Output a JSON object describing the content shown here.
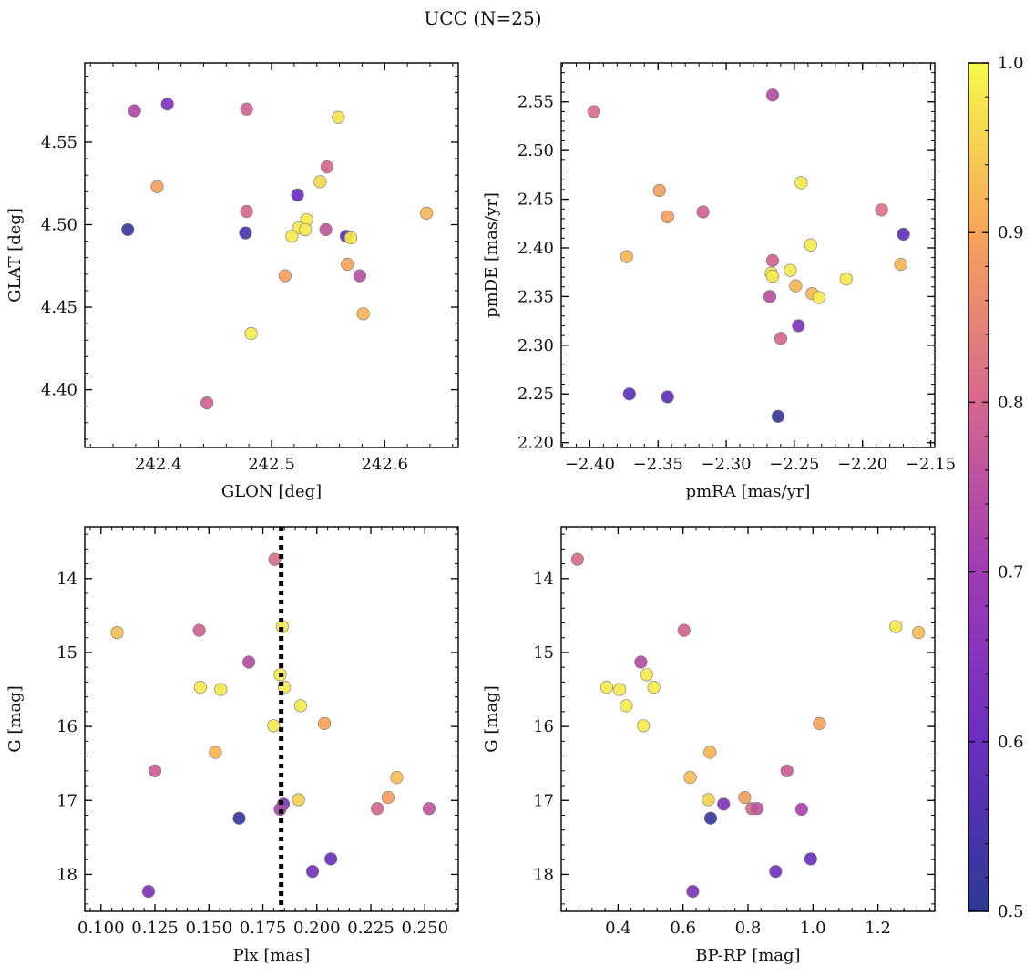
{
  "figure": {
    "title": "UCC (N=25)",
    "colorbar": {
      "min": 0.5,
      "max": 1.0,
      "ticks": [
        "0.5",
        "0.6",
        "0.7",
        "0.8",
        "0.9",
        "1.0"
      ]
    }
  },
  "chart_data": [
    {
      "type": "scatter",
      "id": "glon-glat",
      "title": "",
      "xlabel": "GLON [deg]",
      "ylabel": "GLAT [deg]",
      "xlim": [
        242.335,
        242.665
      ],
      "ylim": [
        4.365,
        4.598
      ],
      "xticks": [
        242.4,
        242.5,
        242.6
      ],
      "xtick_labels": [
        "242.4",
        "242.5",
        "242.6"
      ],
      "yticks": [
        4.4,
        4.45,
        4.5,
        4.55
      ],
      "ytick_labels": [
        "4.40",
        "4.45",
        "4.50",
        "4.55"
      ],
      "invert_y": false,
      "points": [
        {
          "x": 242.379,
          "y": 4.569,
          "c": 0.73
        },
        {
          "x": 242.408,
          "y": 4.573,
          "c": 0.64
        },
        {
          "x": 242.478,
          "y": 4.57,
          "c": 0.79
        },
        {
          "x": 242.559,
          "y": 4.565,
          "c": 0.97
        },
        {
          "x": 242.399,
          "y": 4.523,
          "c": 0.89
        },
        {
          "x": 242.549,
          "y": 4.535,
          "c": 0.8
        },
        {
          "x": 242.543,
          "y": 4.526,
          "c": 0.96
        },
        {
          "x": 242.523,
          "y": 4.518,
          "c": 0.6
        },
        {
          "x": 242.373,
          "y": 4.497,
          "c": 0.52
        },
        {
          "x": 242.478,
          "y": 4.508,
          "c": 0.8
        },
        {
          "x": 242.477,
          "y": 4.495,
          "c": 0.55
        },
        {
          "x": 242.531,
          "y": 4.503,
          "c": 0.98
        },
        {
          "x": 242.524,
          "y": 4.498,
          "c": 0.98
        },
        {
          "x": 242.53,
          "y": 4.497,
          "c": 0.98
        },
        {
          "x": 242.518,
          "y": 4.493,
          "c": 0.98
        },
        {
          "x": 242.548,
          "y": 4.497,
          "c": 0.76
        },
        {
          "x": 242.566,
          "y": 4.493,
          "c": 0.58
        },
        {
          "x": 242.57,
          "y": 4.492,
          "c": 0.98
        },
        {
          "x": 242.637,
          "y": 4.507,
          "c": 0.92
        },
        {
          "x": 242.512,
          "y": 4.469,
          "c": 0.89
        },
        {
          "x": 242.567,
          "y": 4.476,
          "c": 0.9
        },
        {
          "x": 242.578,
          "y": 4.469,
          "c": 0.75
        },
        {
          "x": 242.581,
          "y": 4.446,
          "c": 0.92
        },
        {
          "x": 242.482,
          "y": 4.434,
          "c": 0.98
        },
        {
          "x": 242.443,
          "y": 4.392,
          "c": 0.79
        }
      ]
    },
    {
      "type": "scatter",
      "id": "pmra-pmde",
      "title": "",
      "xlabel": "pmRA [mas/yr]",
      "ylabel": "pmDE [mas/yr]",
      "xlim": [
        -2.421,
        -2.147
      ],
      "ylim": [
        2.195,
        2.59
      ],
      "xticks": [
        -2.4,
        -2.35,
        -2.3,
        -2.25,
        -2.2,
        -2.15
      ],
      "xtick_labels": [
        "−2.40",
        "−2.35",
        "−2.30",
        "−2.25",
        "−2.20",
        "−2.15"
      ],
      "yticks": [
        2.2,
        2.25,
        2.3,
        2.35,
        2.4,
        2.45,
        2.5,
        2.55
      ],
      "ytick_labels": [
        "2.20",
        "2.25",
        "2.30",
        "2.35",
        "2.40",
        "2.45",
        "2.50",
        "2.55"
      ],
      "invert_y": false,
      "points": [
        {
          "x": -2.397,
          "y": 2.54,
          "c": 0.81
        },
        {
          "x": -2.266,
          "y": 2.557,
          "c": 0.74
        },
        {
          "x": -2.349,
          "y": 2.459,
          "c": 0.89
        },
        {
          "x": -2.245,
          "y": 2.467,
          "c": 0.98
        },
        {
          "x": -2.343,
          "y": 2.432,
          "c": 0.89
        },
        {
          "x": -2.317,
          "y": 2.437,
          "c": 0.79
        },
        {
          "x": -2.186,
          "y": 2.439,
          "c": 0.82
        },
        {
          "x": -2.17,
          "y": 2.414,
          "c": 0.58
        },
        {
          "x": -2.373,
          "y": 2.391,
          "c": 0.92
        },
        {
          "x": -2.238,
          "y": 2.403,
          "c": 0.98
        },
        {
          "x": -2.266,
          "y": 2.387,
          "c": 0.79
        },
        {
          "x": -2.172,
          "y": 2.383,
          "c": 0.92
        },
        {
          "x": -2.253,
          "y": 2.377,
          "c": 0.98
        },
        {
          "x": -2.267,
          "y": 2.374,
          "c": 0.98
        },
        {
          "x": -2.266,
          "y": 2.371,
          "c": 0.98
        },
        {
          "x": -2.212,
          "y": 2.368,
          "c": 0.98
        },
        {
          "x": -2.249,
          "y": 2.361,
          "c": 0.92
        },
        {
          "x": -2.237,
          "y": 2.353,
          "c": 0.92
        },
        {
          "x": -2.232,
          "y": 2.349,
          "c": 0.98
        },
        {
          "x": -2.268,
          "y": 2.35,
          "c": 0.74
        },
        {
          "x": -2.247,
          "y": 2.32,
          "c": 0.64
        },
        {
          "x": -2.26,
          "y": 2.307,
          "c": 0.8
        },
        {
          "x": -2.371,
          "y": 2.25,
          "c": 0.58
        },
        {
          "x": -2.343,
          "y": 2.247,
          "c": 0.58
        },
        {
          "x": -2.262,
          "y": 2.227,
          "c": 0.52
        }
      ]
    },
    {
      "type": "scatter",
      "id": "plx-g",
      "title": "",
      "xlabel": "Plx [mas]",
      "ylabel": "G [mag]",
      "xlim": [
        0.0925,
        0.2655
      ],
      "ylim": [
        13.3,
        18.5
      ],
      "xticks": [
        0.1,
        0.125,
        0.15,
        0.175,
        0.2,
        0.225,
        0.25
      ],
      "xtick_labels": [
        "0.100",
        "0.125",
        "0.150",
        "0.175",
        "0.200",
        "0.225",
        "0.250"
      ],
      "yticks": [
        14,
        15,
        16,
        17,
        18
      ],
      "ytick_labels": [
        "14",
        "15",
        "16",
        "17",
        "18"
      ],
      "invert_y": true,
      "vline": 0.1835,
      "points": [
        {
          "x": 0.1805,
          "y": 13.74,
          "c": 0.81
        },
        {
          "x": 0.184,
          "y": 14.65,
          "c": 0.98
        },
        {
          "x": 0.1075,
          "y": 14.73,
          "c": 0.93
        },
        {
          "x": 0.1455,
          "y": 14.7,
          "c": 0.79
        },
        {
          "x": 0.1685,
          "y": 15.13,
          "c": 0.74
        },
        {
          "x": 0.183,
          "y": 15.3,
          "c": 0.98
        },
        {
          "x": 0.146,
          "y": 15.47,
          "c": 0.98
        },
        {
          "x": 0.1555,
          "y": 15.5,
          "c": 0.98
        },
        {
          "x": 0.185,
          "y": 15.47,
          "c": 0.98
        },
        {
          "x": 0.1925,
          "y": 15.72,
          "c": 0.98
        },
        {
          "x": 0.18,
          "y": 15.99,
          "c": 0.98
        },
        {
          "x": 0.2035,
          "y": 15.96,
          "c": 0.9
        },
        {
          "x": 0.153,
          "y": 16.35,
          "c": 0.92
        },
        {
          "x": 0.125,
          "y": 16.6,
          "c": 0.78
        },
        {
          "x": 0.237,
          "y": 16.69,
          "c": 0.93
        },
        {
          "x": 0.233,
          "y": 16.96,
          "c": 0.89
        },
        {
          "x": 0.1915,
          "y": 16.99,
          "c": 0.95
        },
        {
          "x": 0.1845,
          "y": 17.05,
          "c": 0.64
        },
        {
          "x": 0.183,
          "y": 17.12,
          "c": 0.72
        },
        {
          "x": 0.228,
          "y": 17.11,
          "c": 0.8
        },
        {
          "x": 0.252,
          "y": 17.11,
          "c": 0.76
        },
        {
          "x": 0.164,
          "y": 17.24,
          "c": 0.52
        },
        {
          "x": 0.2065,
          "y": 17.79,
          "c": 0.6
        },
        {
          "x": 0.198,
          "y": 17.96,
          "c": 0.62
        },
        {
          "x": 0.122,
          "y": 18.23,
          "c": 0.64
        }
      ]
    },
    {
      "type": "scatter",
      "id": "bprp-g",
      "title": "",
      "xlabel": "BP-RP [mag]",
      "ylabel": "G [mag]",
      "xlim": [
        0.225,
        1.375
      ],
      "ylim": [
        13.3,
        18.5
      ],
      "xticks": [
        0.4,
        0.6,
        0.8,
        1.0,
        1.2
      ],
      "xtick_labels": [
        "0.4",
        "0.6",
        "0.8",
        "1.0",
        "1.2"
      ],
      "yticks": [
        14,
        15,
        16,
        17,
        18
      ],
      "ytick_labels": [
        "14",
        "15",
        "16",
        "17",
        "18"
      ],
      "invert_y": true,
      "points": [
        {
          "x": 0.275,
          "y": 13.74,
          "c": 0.81
        },
        {
          "x": 1.255,
          "y": 14.65,
          "c": 0.98
        },
        {
          "x": 1.325,
          "y": 14.73,
          "c": 0.93
        },
        {
          "x": 0.603,
          "y": 14.7,
          "c": 0.79
        },
        {
          "x": 0.47,
          "y": 15.13,
          "c": 0.74
        },
        {
          "x": 0.488,
          "y": 15.3,
          "c": 0.98
        },
        {
          "x": 0.365,
          "y": 15.47,
          "c": 0.98
        },
        {
          "x": 0.405,
          "y": 15.5,
          "c": 0.98
        },
        {
          "x": 0.51,
          "y": 15.47,
          "c": 0.98
        },
        {
          "x": 0.425,
          "y": 15.72,
          "c": 0.98
        },
        {
          "x": 0.478,
          "y": 15.99,
          "c": 0.98
        },
        {
          "x": 1.02,
          "y": 15.96,
          "c": 0.9
        },
        {
          "x": 0.683,
          "y": 16.35,
          "c": 0.92
        },
        {
          "x": 0.92,
          "y": 16.6,
          "c": 0.78
        },
        {
          "x": 0.622,
          "y": 16.69,
          "c": 0.93
        },
        {
          "x": 0.79,
          "y": 16.96,
          "c": 0.89
        },
        {
          "x": 0.678,
          "y": 16.99,
          "c": 0.95
        },
        {
          "x": 0.725,
          "y": 17.05,
          "c": 0.64
        },
        {
          "x": 0.965,
          "y": 17.12,
          "c": 0.72
        },
        {
          "x": 0.812,
          "y": 17.11,
          "c": 0.8
        },
        {
          "x": 0.828,
          "y": 17.11,
          "c": 0.76
        },
        {
          "x": 0.685,
          "y": 17.24,
          "c": 0.52
        },
        {
          "x": 0.993,
          "y": 17.79,
          "c": 0.6
        },
        {
          "x": 0.885,
          "y": 17.96,
          "c": 0.62
        },
        {
          "x": 0.63,
          "y": 18.23,
          "c": 0.64
        }
      ]
    }
  ]
}
